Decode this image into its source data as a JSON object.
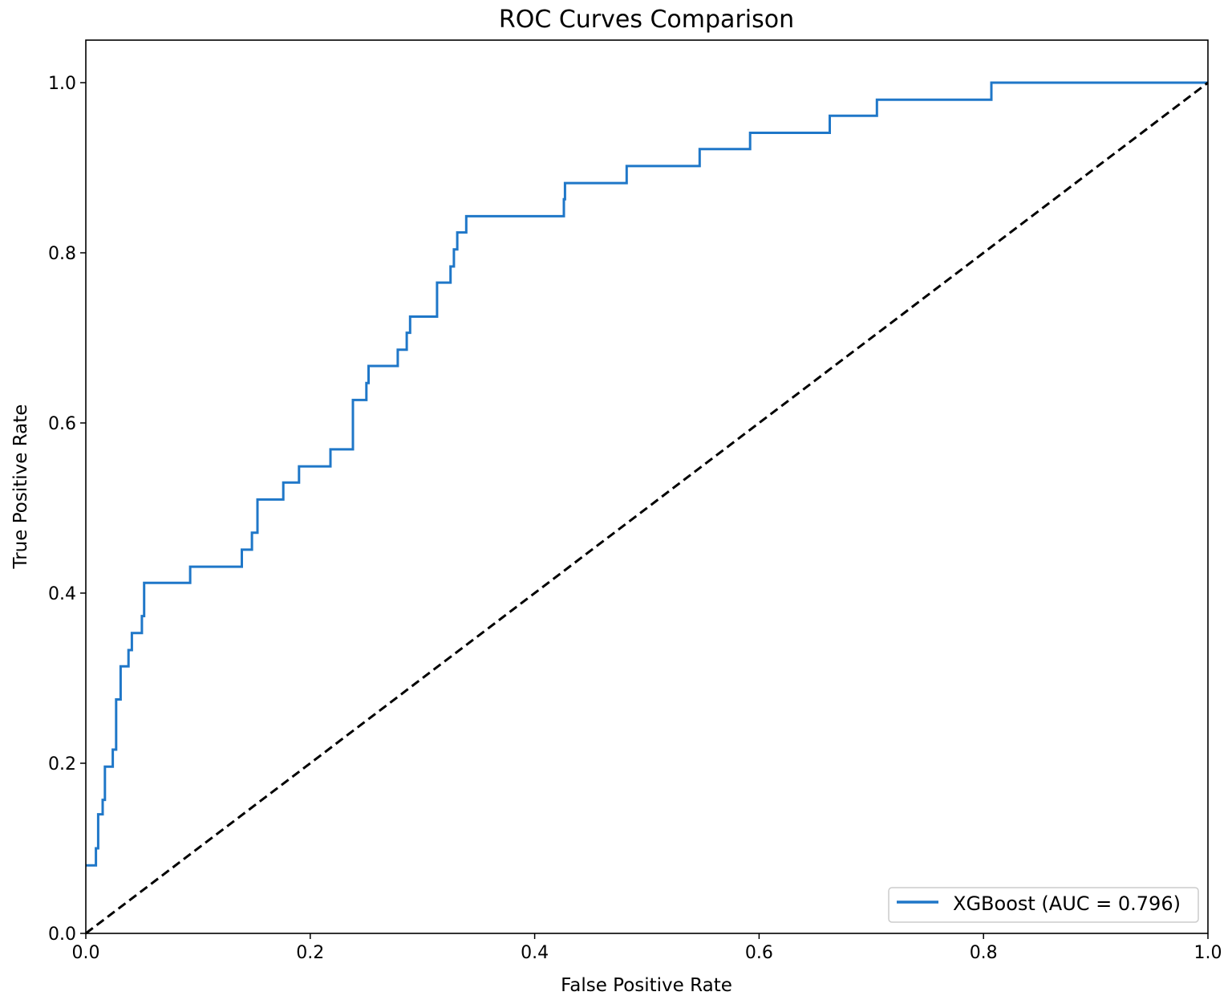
{
  "chart_data": {
    "type": "line",
    "title": "ROC Curves Comparison",
    "xlabel": "False Positive Rate",
    "ylabel": "True Positive Rate",
    "xlim": [
      0.0,
      1.0
    ],
    "ylim": [
      0.0,
      1.05
    ],
    "xticks": [
      "0.0",
      "0.2",
      "0.4",
      "0.6",
      "0.8",
      "1.0"
    ],
    "yticks": [
      "0.0",
      "0.2",
      "0.4",
      "0.6",
      "0.8",
      "1.0"
    ],
    "grid": false,
    "legend_position": "lower-right",
    "series": [
      {
        "name": "XGBoost (AUC = 0.796)",
        "color": "#1f77c8",
        "style": "step",
        "points": [
          [
            0.0,
            0.08
          ],
          [
            0.009,
            0.08
          ],
          [
            0.009,
            0.1
          ],
          [
            0.011,
            0.1
          ],
          [
            0.011,
            0.14
          ],
          [
            0.015,
            0.14
          ],
          [
            0.015,
            0.157
          ],
          [
            0.017,
            0.157
          ],
          [
            0.017,
            0.196
          ],
          [
            0.024,
            0.196
          ],
          [
            0.024,
            0.216
          ],
          [
            0.027,
            0.216
          ],
          [
            0.027,
            0.275
          ],
          [
            0.031,
            0.275
          ],
          [
            0.031,
            0.314
          ],
          [
            0.038,
            0.314
          ],
          [
            0.038,
            0.333
          ],
          [
            0.041,
            0.333
          ],
          [
            0.041,
            0.353
          ],
          [
            0.05,
            0.353
          ],
          [
            0.05,
            0.373
          ],
          [
            0.052,
            0.373
          ],
          [
            0.052,
            0.412
          ],
          [
            0.093,
            0.412
          ],
          [
            0.093,
            0.431
          ],
          [
            0.139,
            0.431
          ],
          [
            0.139,
            0.451
          ],
          [
            0.148,
            0.451
          ],
          [
            0.148,
            0.471
          ],
          [
            0.153,
            0.471
          ],
          [
            0.153,
            0.51
          ],
          [
            0.176,
            0.51
          ],
          [
            0.176,
            0.53
          ],
          [
            0.19,
            0.53
          ],
          [
            0.19,
            0.549
          ],
          [
            0.218,
            0.549
          ],
          [
            0.218,
            0.569
          ],
          [
            0.238,
            0.569
          ],
          [
            0.238,
            0.627
          ],
          [
            0.25,
            0.627
          ],
          [
            0.25,
            0.647
          ],
          [
            0.252,
            0.647
          ],
          [
            0.252,
            0.667
          ],
          [
            0.278,
            0.667
          ],
          [
            0.278,
            0.686
          ],
          [
            0.286,
            0.686
          ],
          [
            0.286,
            0.706
          ],
          [
            0.289,
            0.706
          ],
          [
            0.289,
            0.725
          ],
          [
            0.313,
            0.725
          ],
          [
            0.313,
            0.765
          ],
          [
            0.325,
            0.765
          ],
          [
            0.325,
            0.784
          ],
          [
            0.328,
            0.784
          ],
          [
            0.328,
            0.804
          ],
          [
            0.331,
            0.804
          ],
          [
            0.331,
            0.824
          ],
          [
            0.339,
            0.824
          ],
          [
            0.339,
            0.843
          ],
          [
            0.426,
            0.843
          ],
          [
            0.426,
            0.863
          ],
          [
            0.427,
            0.863
          ],
          [
            0.427,
            0.882
          ],
          [
            0.482,
            0.882
          ],
          [
            0.482,
            0.902
          ],
          [
            0.547,
            0.902
          ],
          [
            0.547,
            0.922
          ],
          [
            0.592,
            0.922
          ],
          [
            0.592,
            0.941
          ],
          [
            0.663,
            0.941
          ],
          [
            0.663,
            0.961
          ],
          [
            0.705,
            0.961
          ],
          [
            0.705,
            0.98
          ],
          [
            0.807,
            0.98
          ],
          [
            0.807,
            1.0
          ],
          [
            1.0,
            1.0
          ]
        ]
      },
      {
        "name": "",
        "color": "#000000",
        "style": "dashed",
        "points": [
          [
            0.0,
            0.0
          ],
          [
            1.0,
            1.0
          ]
        ]
      }
    ]
  }
}
